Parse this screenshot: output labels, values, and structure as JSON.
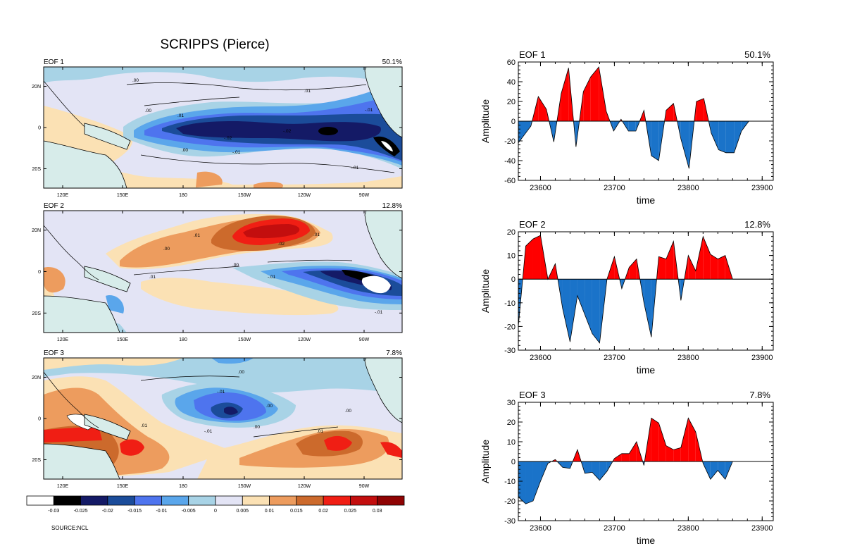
{
  "figure": {
    "title": "SCRIPPS (Pierce)",
    "source": "SOURCE:NCL"
  },
  "maps": [
    {
      "label": "EOF 1",
      "pct": "50.1%",
      "contour_labels": [
        ".00",
        ".01",
        ".00",
        ".01",
        "-.02",
        "-.02",
        "-.01",
        ".00",
        "-.01",
        "-.01"
      ]
    },
    {
      "label": "EOF 2",
      "pct": "12.8%",
      "contour_labels": [
        ".01",
        ".00",
        ".01",
        ".00",
        ".02",
        ".01",
        "-.01",
        "-.01"
      ]
    },
    {
      "label": "EOF 3",
      "pct": "7.8%",
      "contour_labels": [
        ".00",
        "-.01",
        ".00",
        "-.01",
        ".00",
        ".01",
        ".01",
        ".00"
      ]
    }
  ],
  "map_axes": {
    "lon_ticks": [
      "120E",
      "150E",
      "180",
      "150W",
      "120W",
      "90W"
    ],
    "lat_ticks": [
      "20N",
      "0",
      "20S"
    ]
  },
  "colorbar": {
    "labels": [
      "-0.03",
      "-0.025",
      "-0.02",
      "-0.015",
      "-0.01",
      "-0.005",
      "0",
      "0.005",
      "0.01",
      "0.015",
      "0.02",
      "0.025",
      "0.03"
    ],
    "colors": [
      "#ffffff",
      "#000000",
      "#141a66",
      "#1b4c9a",
      "#4e74ee",
      "#5aa6eb",
      "#a8d3e6",
      "#e3e4f5",
      "#fbe1b4",
      "#ed9c5e",
      "#cc6a2c",
      "#f01e14",
      "#c30e0e",
      "#8f0303"
    ]
  },
  "colors": {
    "positive": "#ff0000",
    "negative": "#1a73c9"
  },
  "chart_data": [
    {
      "type": "area",
      "title": "EOF 1",
      "pct": "50.1%",
      "xlabel": "time",
      "ylabel": "Amplitude",
      "xlim": [
        23570,
        23915
      ],
      "ylim": [
        -60,
        60
      ],
      "xticks": [
        23600,
        23700,
        23800,
        23900
      ],
      "yticks": [
        -60,
        -40,
        -20,
        0,
        20,
        40,
        60
      ],
      "x": [
        23570,
        23587,
        23597,
        23608,
        23618,
        23628,
        23638,
        23648,
        23658,
        23668,
        23679,
        23689,
        23699,
        23709,
        23719,
        23729,
        23740,
        23750,
        23760,
        23770,
        23780,
        23790,
        23801,
        23811,
        23821,
        23831,
        23841,
        23851,
        23862,
        23872,
        23882,
        23892,
        23902,
        23912
      ],
      "values": [
        -22,
        -5,
        25,
        12,
        -21,
        28,
        54,
        -26,
        30,
        45,
        55,
        10,
        -10,
        2,
        -10,
        -10,
        11,
        -35,
        -40,
        11,
        18,
        -18,
        -48,
        20,
        23,
        -12,
        -29,
        -32,
        -32,
        -10,
        0,
        0,
        0,
        0
      ]
    },
    {
      "type": "area",
      "title": "EOF 2",
      "pct": "12.8%",
      "xlabel": "time",
      "ylabel": "Amplitude",
      "xlim": [
        23570,
        23915
      ],
      "ylim": [
        -30,
        20
      ],
      "xticks": [
        23600,
        23700,
        23800,
        23900
      ],
      "yticks": [
        -30,
        -20,
        -10,
        0,
        10,
        20
      ],
      "x": [
        23570,
        23580,
        23590,
        23600,
        23610,
        23620,
        23630,
        23640,
        23650,
        23660,
        23670,
        23680,
        23690,
        23700,
        23710,
        23720,
        23730,
        23740,
        23750,
        23760,
        23770,
        23780,
        23790,
        23800,
        23810,
        23820,
        23830,
        23840,
        23850,
        23860,
        23870,
        23880,
        23890,
        23900,
        23910
      ],
      "values": [
        -20,
        14,
        17,
        18.5,
        0,
        6.5,
        -12.5,
        -26.5,
        -7,
        -15,
        -23,
        -27,
        0,
        9.5,
        -4,
        5,
        8.5,
        -10,
        -24.5,
        9.5,
        8.5,
        16,
        -9,
        10,
        3.5,
        18,
        10.5,
        8.5,
        10,
        0,
        0,
        0,
        0,
        0,
        0
      ]
    },
    {
      "type": "area",
      "title": "EOF 3",
      "pct": "7.8%",
      "xlabel": "time",
      "ylabel": "Amplitude",
      "xlim": [
        23570,
        23915
      ],
      "ylim": [
        -30,
        30
      ],
      "xticks": [
        23600,
        23700,
        23800,
        23900
      ],
      "yticks": [
        -30,
        -20,
        -10,
        0,
        10,
        20,
        30
      ],
      "x": [
        23570,
        23580,
        23590,
        23600,
        23610,
        23620,
        23630,
        23640,
        23650,
        23660,
        23670,
        23680,
        23690,
        23700,
        23710,
        23720,
        23730,
        23740,
        23750,
        23760,
        23770,
        23780,
        23790,
        23800,
        23810,
        23820,
        23830,
        23840,
        23850,
        23860,
        23870,
        23880,
        23890,
        23900,
        23910
      ],
      "values": [
        -18,
        -21.5,
        -20,
        -10,
        -1,
        1,
        -3,
        -3.5,
        6,
        -6,
        -5.5,
        -9.5,
        -5,
        1.5,
        4,
        4,
        10,
        -2,
        22,
        19.5,
        8,
        6,
        7,
        22,
        15,
        -1,
        -9,
        -4.5,
        -9,
        0,
        0,
        0,
        0,
        0,
        0
      ]
    }
  ]
}
